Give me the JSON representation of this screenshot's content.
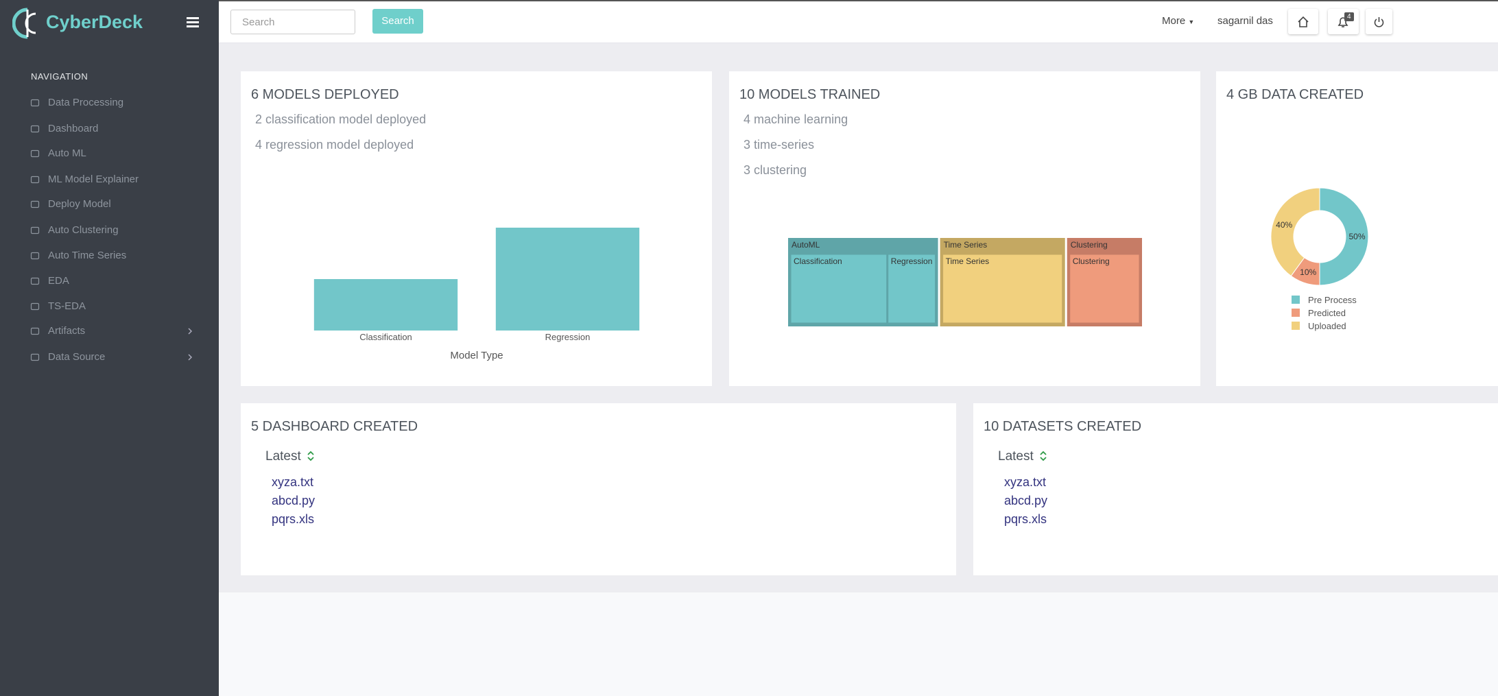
{
  "sidebar": {
    "brand": "CyberDeck",
    "heading": "NAVIGATION",
    "items": [
      "Data Processing",
      "Dashboard",
      "Auto ML",
      "ML Model Explainer",
      "Deploy Model",
      "Auto Clustering",
      "Auto Time Series",
      "EDA",
      "TS-EDA",
      "Artifacts",
      "Data Source"
    ]
  },
  "topbar": {
    "search_placeholder": "Search",
    "search_button": "Search",
    "more": "More",
    "user": "sagarnil das",
    "notification_count": 4
  },
  "cards": [
    {
      "title": "6 MODELS DEPLOYED",
      "lines": [
        "2 classification model deployed",
        "4 regression model deployed"
      ],
      "chart": {
        "type": "bar",
        "categories": [
          "Classification",
          "Regression"
        ],
        "values": [
          2,
          4
        ],
        "color": "#72c6c9",
        "xlabel": "Model Type",
        "ylim": [
          0,
          4
        ]
      }
    },
    {
      "title": "10 MODELS TRAINED",
      "lines": [
        "4 machine learning",
        "3 time-series",
        "3 clustering"
      ],
      "chart": {
        "type": "treemap",
        "nodes": [
          {
            "name": "AutoML",
            "color": "#5fa5a8",
            "children": [
              {
                "name": "Classification",
                "value": 2,
                "color": "#72c6c9"
              },
              {
                "name": "Regression",
                "value": 1,
                "color": "#72c6c9"
              }
            ]
          },
          {
            "name": "Time Series",
            "color": "#c4a862",
            "children": [
              {
                "name": "Time Series",
                "value": 2.5,
                "color": "#f1d07e"
              }
            ]
          },
          {
            "name": "Clustering",
            "color": "#c67c66",
            "children": [
              {
                "name": "Clustering",
                "value": 1.5,
                "color": "#ef9b7c"
              }
            ]
          }
        ]
      }
    },
    {
      "title": "4 GB DATA CREATED",
      "chart": {
        "type": "pie",
        "hole": true,
        "labels": [
          "Pre Process",
          "Predicted",
          "Uploaded"
        ],
        "values": [
          50,
          10,
          40
        ],
        "value_labels": [
          "50%",
          "10%",
          "40%"
        ],
        "colors": [
          "#72c6c9",
          "#ef9b7c",
          "#f1d07e"
        ]
      }
    },
    {
      "title": "5 DASHBOARD CREATED",
      "list_header": "Latest",
      "items": [
        "xyza.txt",
        "abcd.py",
        "pqrs.xls"
      ]
    },
    {
      "title": "10 DATASETS CREATED",
      "list_header": "Latest",
      "items": [
        "xyza.txt",
        "abcd.py",
        "pqrs.xls"
      ]
    }
  ]
}
